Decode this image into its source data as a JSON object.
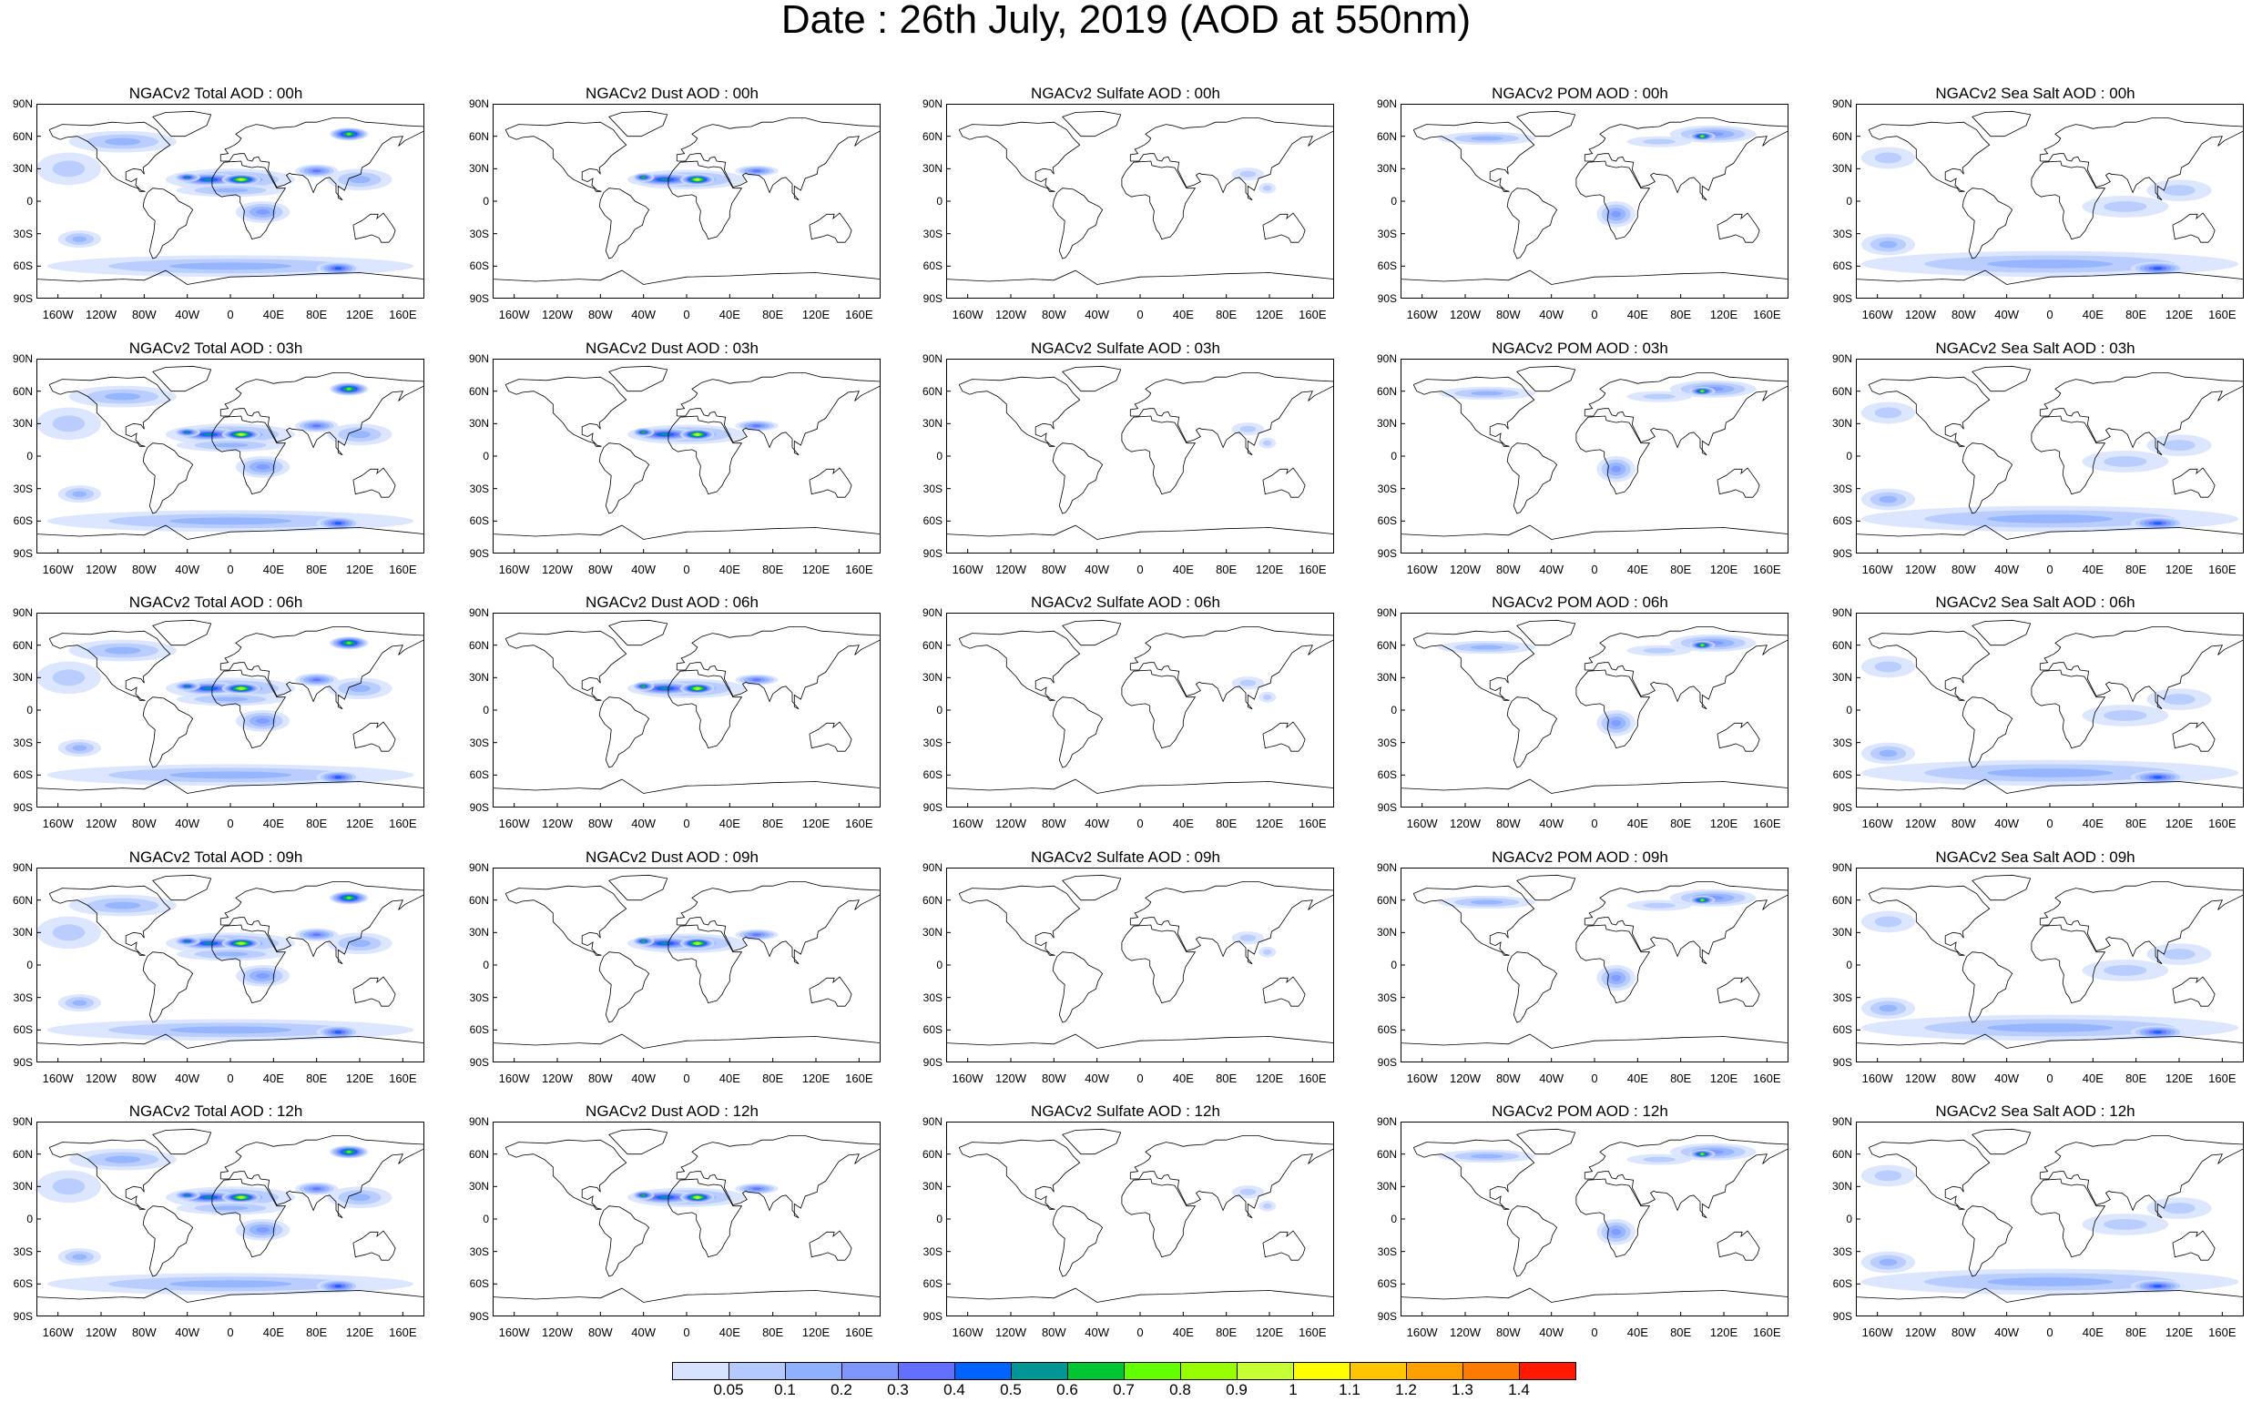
{
  "title": "Date : 26th July, 2019 (AOD at 550nm)",
  "lat_labels": [
    "90N",
    "60N",
    "30N",
    "0",
    "30S",
    "60S",
    "90S"
  ],
  "lon_labels": [
    "160W",
    "120W",
    "80W",
    "40W",
    "0",
    "40E",
    "80E",
    "120E",
    "160E"
  ],
  "panels": [
    [
      "NGACv2 Total AOD : 00h",
      "NGACv2 Dust AOD : 00h",
      "NGACv2 Sulfate AOD : 00h",
      "NGACv2 POM AOD : 00h",
      "NGACv2 Sea Salt AOD : 00h"
    ],
    [
      "NGACv2 Total AOD : 03h",
      "NGACv2 Dust AOD : 03h",
      "NGACv2 Sulfate AOD : 03h",
      "NGACv2 POM AOD : 03h",
      "NGACv2 Sea Salt AOD : 03h"
    ],
    [
      "NGACv2 Total AOD : 06h",
      "NGACv2 Dust AOD : 06h",
      "NGACv2 Sulfate AOD : 06h",
      "NGACv2 POM AOD : 06h",
      "NGACv2 Sea Salt AOD : 06h"
    ],
    [
      "NGACv2 Total AOD : 09h",
      "NGACv2 Dust AOD : 09h",
      "NGACv2 Sulfate AOD : 09h",
      "NGACv2 POM AOD : 09h",
      "NGACv2 Sea Salt  AOD : 09h"
    ],
    [
      "NGACv2 Total AOD : 12h",
      "NGACv2 Dust AOD : 12h",
      "NGACv2 Sulfate AOD : 12h",
      "NGACv2 POM  AOD : 12h",
      "NGACv2 Sea Salt  AOD : 12h"
    ]
  ],
  "colorbar": {
    "labels": [
      "0.05",
      "0.1",
      "0.2",
      "0.3",
      "0.4",
      "0.5",
      "0.6",
      "0.7",
      "0.8",
      "0.9",
      "1",
      "1.1",
      "1.2",
      "1.3",
      "1.4"
    ],
    "colors": [
      "#ffffff",
      "#d6e2ff",
      "#b3c9ff",
      "#8eb0ff",
      "#7f96ff",
      "#6370ff",
      "#0063ff",
      "#009696",
      "#00c633",
      "#63ff00",
      "#96ff00",
      "#c6ff33",
      "#ffff00",
      "#ffc600",
      "#ffa000",
      "#ff7c00",
      "#ff1900"
    ]
  }
}
